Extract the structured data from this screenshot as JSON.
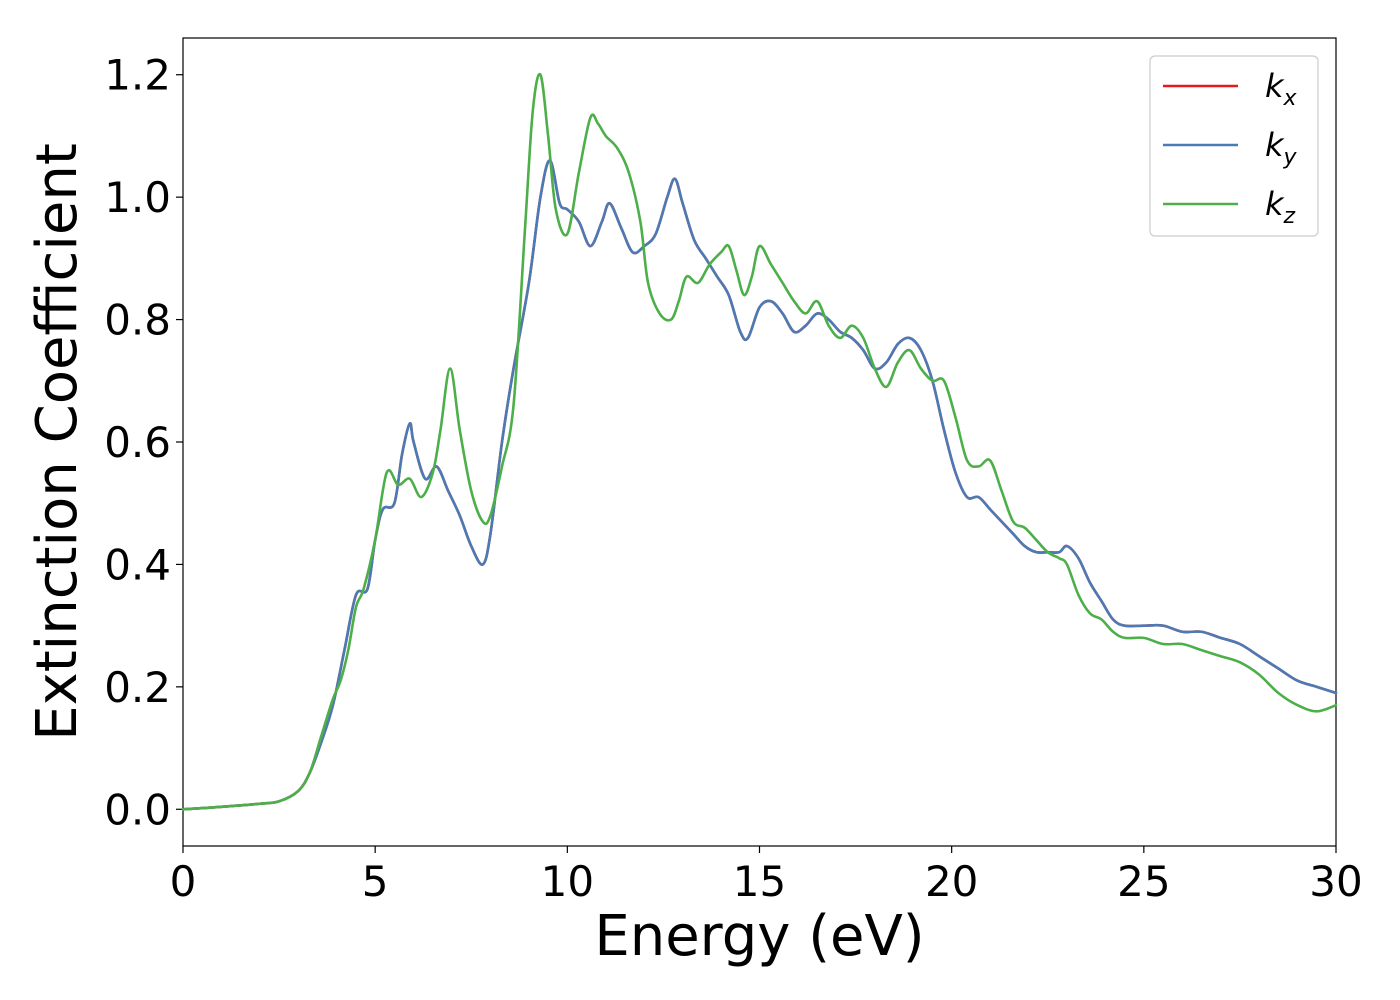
{
  "chart_data": {
    "type": "line",
    "title": "",
    "xlabel": "Energy (eV)",
    "ylabel": "Extinction Coefficient",
    "xlim": [
      0,
      30
    ],
    "ylim": [
      -0.06,
      1.26
    ],
    "xticks": [
      0,
      5,
      10,
      15,
      20,
      25,
      30
    ],
    "xtick_labels": [
      "0",
      "5",
      "10",
      "15",
      "20",
      "25",
      "30"
    ],
    "yticks": [
      0.0,
      0.2,
      0.4,
      0.6,
      0.8,
      1.0,
      1.2
    ],
    "ytick_labels": [
      "0.0",
      "0.2",
      "0.4",
      "0.6",
      "0.8",
      "1.0",
      "1.2"
    ],
    "grid": false,
    "legend_position": "top-right",
    "series": [
      {
        "name": "k_x",
        "legend_base": "k",
        "legend_sub": "x",
        "color": "#e41a1c",
        "x": [
          0,
          1,
          2,
          2.5,
          3,
          3.3,
          3.6,
          3.9,
          4.2,
          4.5,
          4.8,
          5.0,
          5.2,
          5.5,
          5.7,
          5.9,
          6.0,
          6.3,
          6.6,
          6.9,
          7.2,
          7.5,
          7.8,
          8.0,
          8.3,
          8.6,
          9.0,
          9.3,
          9.55,
          9.8,
          10.0,
          10.3,
          10.6,
          10.9,
          11.1,
          11.4,
          11.7,
          12.0,
          12.3,
          12.6,
          12.8,
          13.0,
          13.3,
          13.6,
          13.9,
          14.2,
          14.5,
          14.7,
          15.0,
          15.3,
          15.6,
          15.9,
          16.2,
          16.5,
          16.8,
          17.1,
          17.4,
          17.7,
          18.0,
          18.3,
          18.6,
          18.9,
          19.2,
          19.5,
          19.8,
          20.1,
          20.4,
          20.7,
          21.0,
          21.3,
          21.6,
          21.9,
          22.2,
          22.5,
          22.8,
          23.0,
          23.3,
          23.6,
          23.9,
          24.2,
          24.5,
          25.0,
          25.5,
          26.0,
          26.5,
          27.0,
          27.5,
          28.0,
          28.5,
          29.0,
          29.5,
          30.0
        ],
        "values": [
          0.0,
          0.004,
          0.009,
          0.013,
          0.03,
          0.06,
          0.11,
          0.17,
          0.26,
          0.35,
          0.36,
          0.44,
          0.49,
          0.5,
          0.58,
          0.63,
          0.6,
          0.54,
          0.56,
          0.52,
          0.48,
          0.43,
          0.4,
          0.45,
          0.6,
          0.72,
          0.86,
          1.0,
          1.06,
          0.99,
          0.98,
          0.96,
          0.92,
          0.96,
          0.99,
          0.95,
          0.91,
          0.92,
          0.94,
          1.0,
          1.03,
          0.99,
          0.93,
          0.9,
          0.87,
          0.84,
          0.78,
          0.77,
          0.82,
          0.83,
          0.81,
          0.78,
          0.79,
          0.81,
          0.8,
          0.78,
          0.77,
          0.75,
          0.72,
          0.73,
          0.76,
          0.77,
          0.75,
          0.7,
          0.62,
          0.55,
          0.51,
          0.51,
          0.49,
          0.47,
          0.45,
          0.43,
          0.42,
          0.42,
          0.42,
          0.43,
          0.41,
          0.37,
          0.34,
          0.31,
          0.3,
          0.3,
          0.3,
          0.29,
          0.29,
          0.28,
          0.27,
          0.25,
          0.23,
          0.21,
          0.2,
          0.19
        ]
      },
      {
        "name": "k_y",
        "legend_base": "k",
        "legend_sub": "y",
        "color": "#4a7bb5",
        "x": [
          0,
          1,
          2,
          2.5,
          3,
          3.3,
          3.6,
          3.9,
          4.2,
          4.5,
          4.8,
          5.0,
          5.2,
          5.5,
          5.7,
          5.9,
          6.0,
          6.3,
          6.6,
          6.9,
          7.2,
          7.5,
          7.8,
          8.0,
          8.3,
          8.6,
          9.0,
          9.3,
          9.55,
          9.8,
          10.0,
          10.3,
          10.6,
          10.9,
          11.1,
          11.4,
          11.7,
          12.0,
          12.3,
          12.6,
          12.8,
          13.0,
          13.3,
          13.6,
          13.9,
          14.2,
          14.5,
          14.7,
          15.0,
          15.3,
          15.6,
          15.9,
          16.2,
          16.5,
          16.8,
          17.1,
          17.4,
          17.7,
          18.0,
          18.3,
          18.6,
          18.9,
          19.2,
          19.5,
          19.8,
          20.1,
          20.4,
          20.7,
          21.0,
          21.3,
          21.6,
          21.9,
          22.2,
          22.5,
          22.8,
          23.0,
          23.3,
          23.6,
          23.9,
          24.2,
          24.5,
          25.0,
          25.5,
          26.0,
          26.5,
          27.0,
          27.5,
          28.0,
          28.5,
          29.0,
          29.5,
          30.0
        ],
        "values": [
          0.0,
          0.004,
          0.009,
          0.013,
          0.03,
          0.06,
          0.11,
          0.17,
          0.26,
          0.35,
          0.36,
          0.44,
          0.49,
          0.5,
          0.58,
          0.63,
          0.6,
          0.54,
          0.56,
          0.52,
          0.48,
          0.43,
          0.4,
          0.45,
          0.6,
          0.72,
          0.86,
          1.0,
          1.06,
          0.99,
          0.98,
          0.96,
          0.92,
          0.96,
          0.99,
          0.95,
          0.91,
          0.92,
          0.94,
          1.0,
          1.03,
          0.99,
          0.93,
          0.9,
          0.87,
          0.84,
          0.78,
          0.77,
          0.82,
          0.83,
          0.81,
          0.78,
          0.79,
          0.81,
          0.8,
          0.78,
          0.77,
          0.75,
          0.72,
          0.73,
          0.76,
          0.77,
          0.75,
          0.7,
          0.62,
          0.55,
          0.51,
          0.51,
          0.49,
          0.47,
          0.45,
          0.43,
          0.42,
          0.42,
          0.42,
          0.43,
          0.41,
          0.37,
          0.34,
          0.31,
          0.3,
          0.3,
          0.3,
          0.29,
          0.29,
          0.28,
          0.27,
          0.25,
          0.23,
          0.21,
          0.2,
          0.19
        ]
      },
      {
        "name": "k_z",
        "legend_base": "k",
        "legend_sub": "z",
        "color": "#4daf4a",
        "x": [
          0,
          1,
          2,
          2.5,
          3,
          3.3,
          3.6,
          3.9,
          4.1,
          4.3,
          4.5,
          4.7,
          5.0,
          5.3,
          5.6,
          5.9,
          6.2,
          6.5,
          6.7,
          6.95,
          7.2,
          7.5,
          7.8,
          8.0,
          8.3,
          8.6,
          8.9,
          9.1,
          9.3,
          9.5,
          9.7,
          10.0,
          10.3,
          10.6,
          10.8,
          11.0,
          11.3,
          11.6,
          11.9,
          12.1,
          12.4,
          12.7,
          12.9,
          13.1,
          13.4,
          13.7,
          14.0,
          14.2,
          14.4,
          14.6,
          14.8,
          15.0,
          15.3,
          15.6,
          15.9,
          16.2,
          16.5,
          16.8,
          17.1,
          17.4,
          17.7,
          18.0,
          18.3,
          18.6,
          18.9,
          19.2,
          19.5,
          19.8,
          20.1,
          20.4,
          20.7,
          21.0,
          21.3,
          21.6,
          21.9,
          22.2,
          22.5,
          22.8,
          23.0,
          23.3,
          23.6,
          23.9,
          24.2,
          24.5,
          25.0,
          25.5,
          26.0,
          26.5,
          27.0,
          27.5,
          28.0,
          28.5,
          29.0,
          29.5,
          30.0
        ],
        "values": [
          0.0,
          0.004,
          0.009,
          0.013,
          0.03,
          0.06,
          0.12,
          0.18,
          0.21,
          0.26,
          0.33,
          0.36,
          0.44,
          0.55,
          0.53,
          0.54,
          0.51,
          0.55,
          0.62,
          0.72,
          0.62,
          0.52,
          0.47,
          0.48,
          0.56,
          0.66,
          0.95,
          1.14,
          1.2,
          1.1,
          0.98,
          0.94,
          1.04,
          1.13,
          1.12,
          1.1,
          1.08,
          1.04,
          0.96,
          0.86,
          0.81,
          0.8,
          0.83,
          0.87,
          0.86,
          0.89,
          0.91,
          0.92,
          0.88,
          0.84,
          0.87,
          0.92,
          0.89,
          0.86,
          0.83,
          0.81,
          0.83,
          0.79,
          0.77,
          0.79,
          0.77,
          0.72,
          0.69,
          0.73,
          0.75,
          0.72,
          0.7,
          0.7,
          0.64,
          0.57,
          0.56,
          0.57,
          0.52,
          0.47,
          0.46,
          0.44,
          0.42,
          0.41,
          0.4,
          0.35,
          0.32,
          0.31,
          0.29,
          0.28,
          0.28,
          0.27,
          0.27,
          0.26,
          0.25,
          0.24,
          0.22,
          0.19,
          0.17,
          0.16,
          0.17
        ]
      }
    ]
  }
}
